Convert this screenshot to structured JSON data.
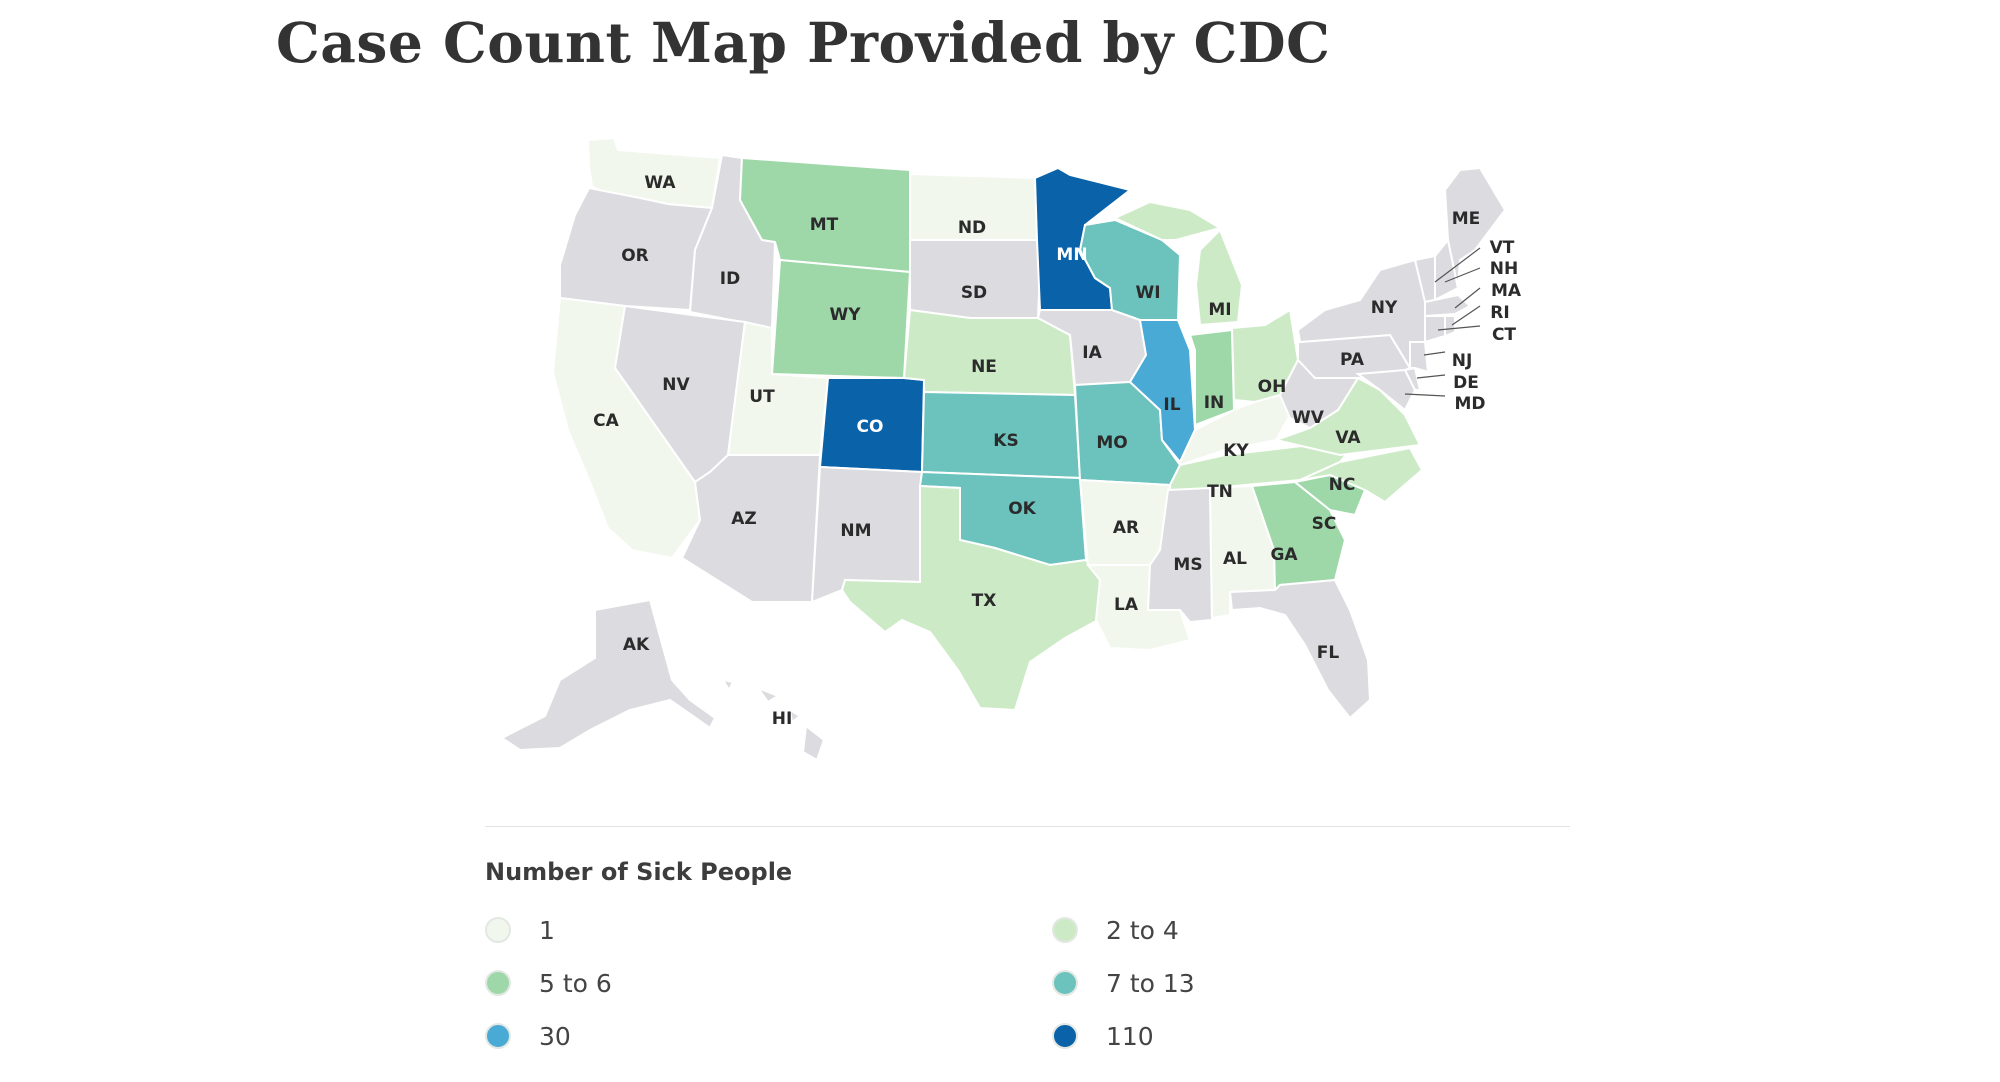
{
  "title": "Case Count Map Provided by CDC",
  "legend": {
    "title": "Number of Sick People",
    "items": [
      {
        "label": "1",
        "color": "#f1f7ec"
      },
      {
        "label": "2 to 4",
        "color": "#cdeac7"
      },
      {
        "label": "5 to 6",
        "color": "#9ed8a9"
      },
      {
        "label": "7 to 13",
        "color": "#6cc3bd"
      },
      {
        "label": "30",
        "color": "#4aaad6"
      },
      {
        "label": "110",
        "color": "#0a62a8"
      }
    ]
  },
  "no_cases_color": "#dcdce0",
  "states": {
    "WA": {
      "label": "WA",
      "bin": "1"
    },
    "OR": {
      "label": "OR",
      "bin": "none"
    },
    "CA": {
      "label": "CA",
      "bin": "1"
    },
    "ID": {
      "label": "ID",
      "bin": "none"
    },
    "NV": {
      "label": "NV",
      "bin": "none"
    },
    "UT": {
      "label": "UT",
      "bin": "1"
    },
    "AZ": {
      "label": "AZ",
      "bin": "none"
    },
    "MT": {
      "label": "MT",
      "bin": "5 to 6"
    },
    "WY": {
      "label": "WY",
      "bin": "5 to 6"
    },
    "CO": {
      "label": "CO",
      "bin": "110"
    },
    "NM": {
      "label": "NM",
      "bin": "none"
    },
    "ND": {
      "label": "ND",
      "bin": "1"
    },
    "SD": {
      "label": "SD",
      "bin": "none"
    },
    "NE": {
      "label": "NE",
      "bin": "2 to 4"
    },
    "KS": {
      "label": "KS",
      "bin": "7 to 13"
    },
    "OK": {
      "label": "OK",
      "bin": "7 to 13"
    },
    "TX": {
      "label": "TX",
      "bin": "2 to 4"
    },
    "MN": {
      "label": "MN",
      "bin": "110"
    },
    "IA": {
      "label": "IA",
      "bin": "none"
    },
    "MO": {
      "label": "MO",
      "bin": "7 to 13"
    },
    "AR": {
      "label": "AR",
      "bin": "1"
    },
    "LA": {
      "label": "LA",
      "bin": "1"
    },
    "WI": {
      "label": "WI",
      "bin": "7 to 13"
    },
    "IL": {
      "label": "IL",
      "bin": "30"
    },
    "MI": {
      "label": "MI",
      "bin": "2 to 4"
    },
    "IN": {
      "label": "IN",
      "bin": "5 to 6"
    },
    "OH": {
      "label": "OH",
      "bin": "2 to 4"
    },
    "KY": {
      "label": "KY",
      "bin": "1"
    },
    "TN": {
      "label": "TN",
      "bin": "2 to 4"
    },
    "MS": {
      "label": "MS",
      "bin": "none"
    },
    "AL": {
      "label": "AL",
      "bin": "1"
    },
    "GA": {
      "label": "GA",
      "bin": "5 to 6"
    },
    "FL": {
      "label": "FL",
      "bin": "none"
    },
    "SC": {
      "label": "SC",
      "bin": "5 to 6"
    },
    "NC": {
      "label": "NC",
      "bin": "2 to 4"
    },
    "VA": {
      "label": "VA",
      "bin": "2 to 4"
    },
    "WV": {
      "label": "WV",
      "bin": "none"
    },
    "PA": {
      "label": "PA",
      "bin": "none"
    },
    "NY": {
      "label": "NY",
      "bin": "none"
    },
    "ME": {
      "label": "ME",
      "bin": "none"
    },
    "VT": {
      "label": "VT",
      "bin": "none"
    },
    "NH": {
      "label": "NH",
      "bin": "none"
    },
    "MA": {
      "label": "MA",
      "bin": "none"
    },
    "RI": {
      "label": "RI",
      "bin": "none"
    },
    "CT": {
      "label": "CT",
      "bin": "none"
    },
    "NJ": {
      "label": "NJ",
      "bin": "none"
    },
    "DE": {
      "label": "DE",
      "bin": "none"
    },
    "MD": {
      "label": "MD",
      "bin": "none"
    },
    "AK": {
      "label": "AK",
      "bin": "none"
    },
    "HI": {
      "label": "HI",
      "bin": "none"
    }
  }
}
